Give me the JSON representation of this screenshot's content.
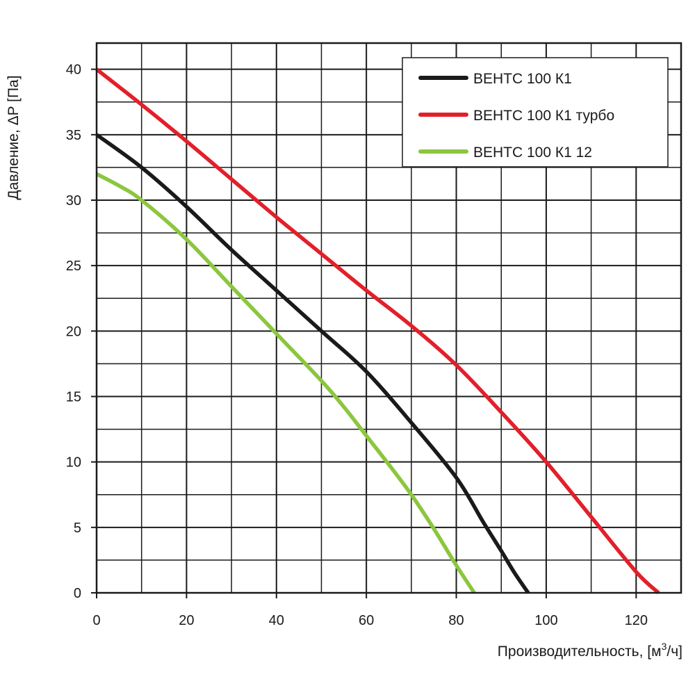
{
  "chart_data": {
    "type": "line",
    "title": "",
    "xlabel": "Производительность, [м",
    "xlabel_sup": "3",
    "xlabel_suffix": "/ч]",
    "ylabel": "Давление, ΔP [Па]",
    "xlim": [
      0,
      130
    ],
    "ylim": [
      0,
      42
    ],
    "x_ticks": [
      0,
      20,
      40,
      60,
      80,
      100,
      120
    ],
    "y_ticks": [
      0,
      5,
      10,
      15,
      20,
      25,
      30,
      35,
      40
    ],
    "grid": true,
    "legend_position": "top-right",
    "series": [
      {
        "name": "ВЕНТС 100 К1",
        "color": "#1a1a1a",
        "x": [
          0,
          10,
          20,
          30,
          40,
          50,
          60,
          70,
          80,
          86,
          90,
          93,
          96
        ],
        "y": [
          35,
          32.5,
          29.5,
          26.2,
          23.1,
          20,
          16.9,
          13,
          8.8,
          5.4,
          3.2,
          1.5,
          0
        ]
      },
      {
        "name": "ВЕНТС 100 К1 турбо",
        "color": "#e2202a",
        "x": [
          0,
          10,
          20,
          30,
          40,
          50,
          60,
          70,
          80,
          90,
          100,
          110,
          120,
          125
        ],
        "y": [
          40,
          37.3,
          34.5,
          31.6,
          28.7,
          25.9,
          23.1,
          20.4,
          17.4,
          13.8,
          10,
          5.8,
          1.6,
          0
        ]
      },
      {
        "name": "ВЕНТС 100 К1 12",
        "color": "#8cc63e",
        "x": [
          0,
          5,
          10,
          20,
          30,
          40,
          50,
          55,
          60,
          65,
          70,
          75,
          80,
          84
        ],
        "y": [
          32,
          31.1,
          30,
          27,
          23.4,
          19.8,
          16.2,
          14.2,
          12,
          9.8,
          7.5,
          4.9,
          2.1,
          0
        ]
      }
    ]
  }
}
